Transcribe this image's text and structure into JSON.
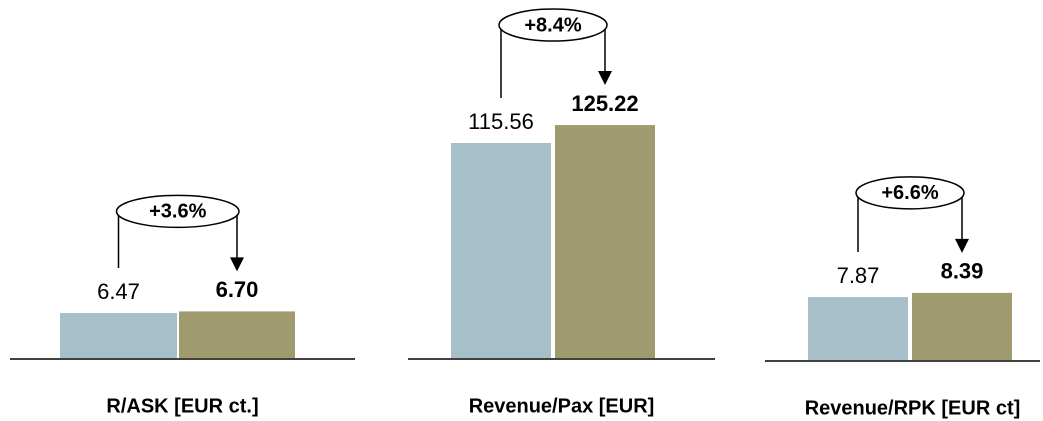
{
  "chart_data": [
    {
      "type": "bar",
      "xlabel": "R/ASK [EUR ct.]",
      "values": [
        6.47,
        6.7
      ],
      "value_labels": [
        "6.47",
        "6.70"
      ],
      "colors": [
        "#a7bfc9",
        "#a09b6f"
      ],
      "change": "+3.6%",
      "ylim": [
        0,
        34.5
      ]
    },
    {
      "type": "bar",
      "xlabel": "Revenue/Pax [EUR]",
      "values": [
        115.56,
        125.22
      ],
      "value_labels": [
        "115.56",
        "125.22"
      ],
      "colors": [
        "#a7bfc9",
        "#a09b6f"
      ],
      "change": "+8.4%",
      "ylim": [
        0,
        129
      ]
    },
    {
      "type": "bar",
      "xlabel": "Revenue/RPK [EUR ct]",
      "values": [
        7.87,
        8.39
      ],
      "value_labels": [
        "7.87",
        "8.39"
      ],
      "colors": [
        "#a7bfc9",
        "#a09b6f"
      ],
      "change": "+6.6%",
      "ylim": [
        0,
        30
      ]
    }
  ]
}
